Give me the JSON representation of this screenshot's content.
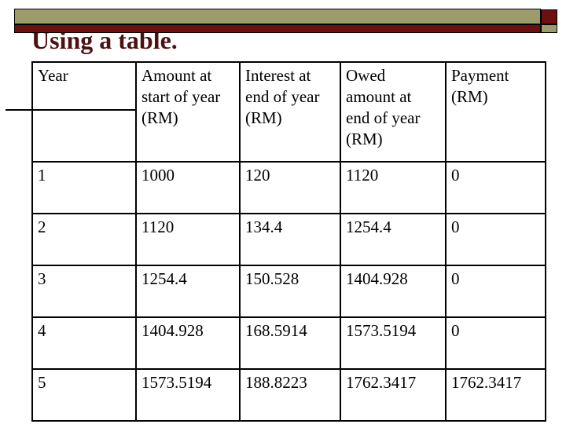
{
  "slide": {
    "title": "Using a table."
  },
  "colors": {
    "accent_tan": "#9B9B6B",
    "accent_dark_red": "#6E0F0F",
    "title_color": "#4C1111",
    "table_border": "#000000"
  },
  "table": {
    "columns": [
      "Year",
      "Amount at\nstart of year\n(RM)",
      "Interest at\nend of year\n(RM)",
      "Owed\namount at\nend of year\n(RM)",
      "Payment\n(RM)"
    ],
    "rows": [
      [
        "1",
        "1000",
        "120",
        "1120",
        "0"
      ],
      [
        "2",
        "1120",
        "134.4",
        "1254.4",
        "0"
      ],
      [
        "3",
        "1254.4",
        "150.528",
        "1404.928",
        "0"
      ],
      [
        "4",
        "1404.928",
        "168.5914",
        "1573.5194",
        "0"
      ],
      [
        "5",
        "1573.5194",
        "188.8223",
        "1762.3417",
        "1762.3417"
      ]
    ]
  }
}
